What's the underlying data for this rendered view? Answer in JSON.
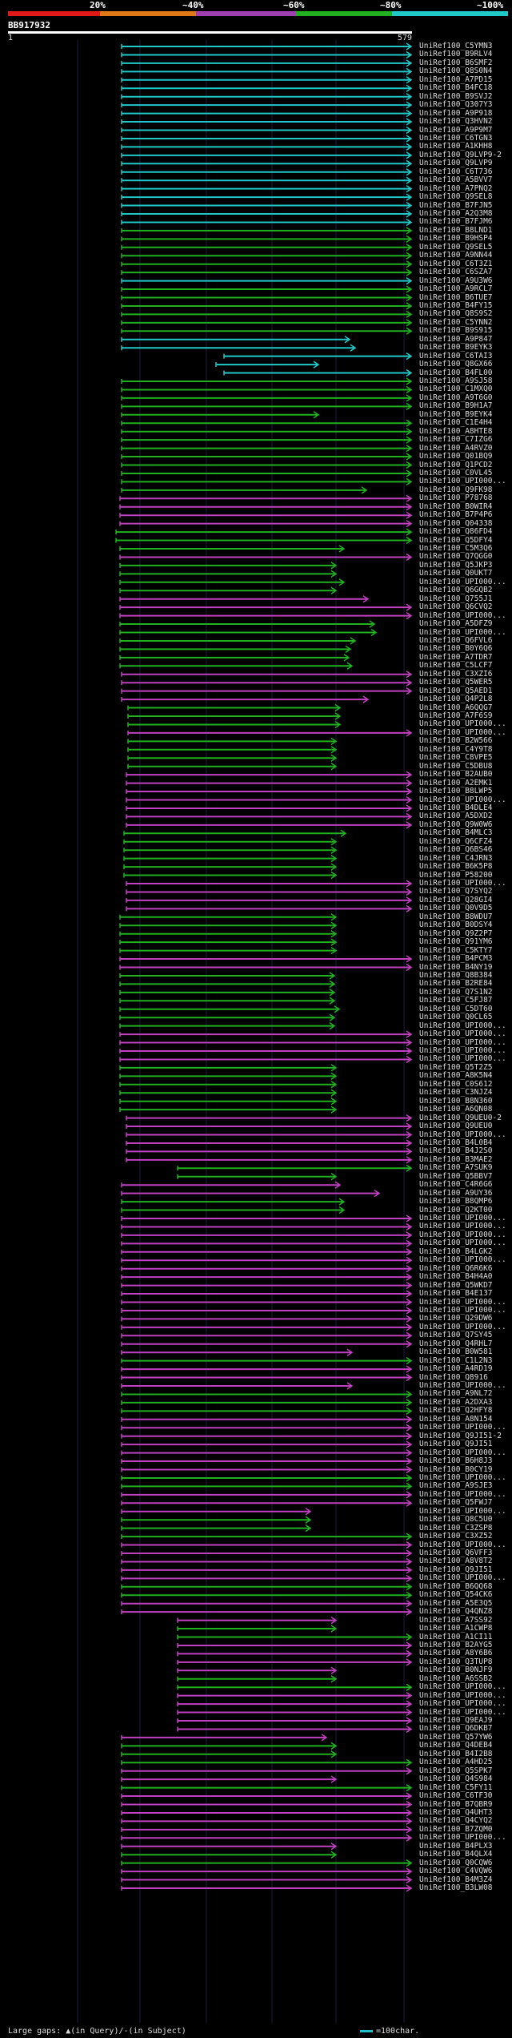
{
  "legend": {
    "stops": [
      "20%",
      "~40%",
      "~60%",
      "~80%",
      "~100%"
    ],
    "colors": [
      "#e01818",
      "#e07818",
      "#a040b0",
      "#20b020",
      "#20c8c8"
    ]
  },
  "query": {
    "id": "BB917932",
    "start": "1",
    "end": "579"
  },
  "footer": {
    "gaps": "Large gaps: ▲(in Query)/-(in Subject)",
    "scale": "=100char."
  },
  "hits": [
    {
      "id": "UniRef100_C5YMN3",
      "cat": "cyan"
    },
    {
      "id": "UniRef100_B9RLV4",
      "cat": "cyan"
    },
    {
      "id": "UniRef100_B6SMF2",
      "cat": "cyan"
    },
    {
      "id": "UniRef100_Q8S0N4",
      "cat": "cyan"
    },
    {
      "id": "UniRef100_A7PD15",
      "cat": "cyan"
    },
    {
      "id": "UniRef100_B4FC18",
      "cat": "cyan"
    },
    {
      "id": "UniRef100_B9SVJ2",
      "cat": "cyan"
    },
    {
      "id": "UniRef100_Q307Y3",
      "cat": "cyan"
    },
    {
      "id": "UniRef100_A9P918",
      "cat": "cyan"
    },
    {
      "id": "UniRef100_Q3HVN2",
      "cat": "cyan"
    },
    {
      "id": "UniRef100_A9P9M7",
      "cat": "cyan"
    },
    {
      "id": "UniRef100_C6TGN3",
      "cat": "cyan"
    },
    {
      "id": "UniRef100_A1KHH8",
      "cat": "cyan"
    },
    {
      "id": "UniRef100_Q9LVP9-2",
      "cat": "cyan"
    },
    {
      "id": "UniRef100_Q9LVP9",
      "cat": "cyan"
    },
    {
      "id": "UniRef100_C6T736",
      "cat": "cyan"
    },
    {
      "id": "UniRef100_A5BVV7",
      "cat": "cyan"
    },
    {
      "id": "UniRef100_A7PNQ2",
      "cat": "cyan"
    },
    {
      "id": "UniRef100_Q9SEL8",
      "cat": "cyan"
    },
    {
      "id": "UniRef100_B7FJN5",
      "cat": "cyan"
    },
    {
      "id": "UniRef100_A2Q3M8",
      "cat": "cyan"
    },
    {
      "id": "UniRef100_B7FJM6",
      "cat": "cyan"
    },
    {
      "id": "UniRef100_B8LND1",
      "cat": "green"
    },
    {
      "id": "UniRef100_B9HSP4",
      "cat": "green"
    },
    {
      "id": "UniRef100_Q9SEL5",
      "cat": "green"
    },
    {
      "id": "UniRef100_A9NN44",
      "cat": "green"
    },
    {
      "id": "UniRef100_C6T3Z1",
      "cat": "green"
    },
    {
      "id": "UniRef100_C6SZA7",
      "cat": "green"
    },
    {
      "id": "UniRef100_A9U3W6",
      "cat": "cyan"
    },
    {
      "id": "UniRef100_A9RCL7",
      "cat": "green"
    },
    {
      "id": "UniRef100_B6TUE7",
      "cat": "green"
    },
    {
      "id": "UniRef100_B4FY15",
      "cat": "green"
    },
    {
      "id": "UniRef100_Q8S9S2",
      "cat": "green"
    },
    {
      "id": "UniRef100_C5YNN2",
      "cat": "green"
    },
    {
      "id": "UniRef100_B9S915",
      "cat": "green"
    },
    {
      "id": "UniRef100_A9P847",
      "cat": "cyan"
    },
    {
      "id": "UniRef100_B9EYK3",
      "cat": "cyan"
    },
    {
      "id": "UniRef100_C6TAI3",
      "cat": "cyan"
    },
    {
      "id": "UniRef100_Q8GX66",
      "cat": "cyan"
    },
    {
      "id": "UniRef100_B4FL00",
      "cat": "cyan"
    },
    {
      "id": "UniRef100_A9SJ58",
      "cat": "green"
    },
    {
      "id": "UniRef100_C1MXQ0",
      "cat": "green"
    },
    {
      "id": "UniRef100_A9T6G0",
      "cat": "green"
    },
    {
      "id": "UniRef100_B9H1A7",
      "cat": "green"
    },
    {
      "id": "UniRef100_B9EYK4",
      "cat": "green"
    },
    {
      "id": "UniRef100_C1E4H4",
      "cat": "green"
    },
    {
      "id": "UniRef100_A8HTE8",
      "cat": "green"
    },
    {
      "id": "UniRef100_C7IZG6",
      "cat": "green"
    },
    {
      "id": "UniRef100_A4RVZ0",
      "cat": "green"
    },
    {
      "id": "UniRef100_Q01BQ9",
      "cat": "green"
    },
    {
      "id": "UniRef100_Q1PCD2",
      "cat": "green"
    },
    {
      "id": "UniRef100_C0VL45",
      "cat": "green"
    },
    {
      "id": "UniRef100_UPI000...",
      "cat": "green"
    },
    {
      "id": "UniRef100_Q9FK98",
      "cat": "green"
    },
    {
      "id": "UniRef100_P78768",
      "cat": "magenta"
    },
    {
      "id": "UniRef100_B0WIR4",
      "cat": "magenta"
    },
    {
      "id": "UniRef100_B7P4P6",
      "cat": "magenta"
    },
    {
      "id": "UniRef100_Q04338",
      "cat": "magenta"
    },
    {
      "id": "UniRef100_Q86FD4",
      "cat": "green"
    },
    {
      "id": "UniRef100_Q5DFY4",
      "cat": "green"
    },
    {
      "id": "UniRef100_C5M3Q6",
      "cat": "green"
    },
    {
      "id": "UniRef100_Q7QGG0",
      "cat": "magenta"
    },
    {
      "id": "UniRef100_Q5JKP3",
      "cat": "green"
    },
    {
      "id": "UniRef100_Q0UKT7",
      "cat": "green"
    },
    {
      "id": "UniRef100_UPI000...",
      "cat": "green"
    },
    {
      "id": "UniRef100_Q6GQB2",
      "cat": "green"
    },
    {
      "id": "UniRef100_Q755J1",
      "cat": "magenta"
    },
    {
      "id": "UniRef100_Q6CVQ2",
      "cat": "magenta"
    },
    {
      "id": "UniRef100_UPI000...",
      "cat": "magenta"
    },
    {
      "id": "UniRef100_A5DFZ9",
      "cat": "green"
    },
    {
      "id": "UniRef100_UPI000...",
      "cat": "green"
    },
    {
      "id": "UniRef100_Q6FVL6",
      "cat": "green"
    },
    {
      "id": "UniRef100_B0Y6Q6",
      "cat": "green"
    },
    {
      "id": "UniRef100_A7TDR7",
      "cat": "green"
    },
    {
      "id": "UniRef100_C5LCF7",
      "cat": "green"
    },
    {
      "id": "UniRef100_C3XZI6",
      "cat": "magenta"
    },
    {
      "id": "UniRef100_Q5WER5",
      "cat": "magenta"
    },
    {
      "id": "UniRef100_Q5AED1",
      "cat": "magenta"
    },
    {
      "id": "UniRef100_Q4P2L8",
      "cat": "magenta"
    },
    {
      "id": "UniRef100_A6QQG7",
      "cat": "green"
    },
    {
      "id": "UniRef100_A7F6S9",
      "cat": "green"
    },
    {
      "id": "UniRef100_UPI000...",
      "cat": "green"
    },
    {
      "id": "UniRef100_UPI000...",
      "cat": "magenta"
    },
    {
      "id": "UniRef100_B2W566",
      "cat": "green"
    },
    {
      "id": "UniRef100_C4Y9T8",
      "cat": "green"
    },
    {
      "id": "UniRef100_C8VPE5",
      "cat": "green"
    },
    {
      "id": "UniRef100_C5DBU8",
      "cat": "green"
    },
    {
      "id": "UniRef100_B2AUB0",
      "cat": "magenta"
    },
    {
      "id": "UniRef100_A2EMK1",
      "cat": "magenta"
    },
    {
      "id": "UniRef100_B8LWP5",
      "cat": "magenta"
    },
    {
      "id": "UniRef100_UPI000...",
      "cat": "magenta"
    },
    {
      "id": "UniRef100_B4DLE4",
      "cat": "magenta"
    },
    {
      "id": "UniRef100_A5DXD2",
      "cat": "magenta"
    },
    {
      "id": "UniRef100_Q9W0W6",
      "cat": "magenta"
    },
    {
      "id": "UniRef100_B4MLC3",
      "cat": "green"
    },
    {
      "id": "UniRef100_Q6CFZ4",
      "cat": "green"
    },
    {
      "id": "UniRef100_Q6BS46",
      "cat": "green"
    },
    {
      "id": "UniRef100_C4JRN3",
      "cat": "green"
    },
    {
      "id": "UniRef100_B6K5P8",
      "cat": "green"
    },
    {
      "id": "UniRef100_P58200",
      "cat": "green"
    },
    {
      "id": "UniRef100_UPI000...",
      "cat": "magenta"
    },
    {
      "id": "UniRef100_Q7SYQ2",
      "cat": "magenta"
    },
    {
      "id": "UniRef100_Q28GI4",
      "cat": "magenta"
    },
    {
      "id": "UniRef100_Q0V9D5",
      "cat": "magenta"
    },
    {
      "id": "UniRef100_B8WDU7",
      "cat": "green"
    },
    {
      "id": "UniRef100_B0DSY4",
      "cat": "green"
    },
    {
      "id": "UniRef100_Q9Z2P7",
      "cat": "green"
    },
    {
      "id": "UniRef100_Q91YM6",
      "cat": "green"
    },
    {
      "id": "UniRef100_C5KTY7",
      "cat": "green"
    },
    {
      "id": "UniRef100_B4PCM3",
      "cat": "magenta"
    },
    {
      "id": "UniRef100_B4NY19",
      "cat": "magenta"
    },
    {
      "id": "UniRef100_Q8B384",
      "cat": "green"
    },
    {
      "id": "UniRef100_B2RE84",
      "cat": "green"
    },
    {
      "id": "UniRef100_Q7S1N2",
      "cat": "green"
    },
    {
      "id": "UniRef100_C5FJ87",
      "cat": "green"
    },
    {
      "id": "UniRef100_C5DT60",
      "cat": "green"
    },
    {
      "id": "UniRef100_Q0CL65",
      "cat": "green"
    },
    {
      "id": "UniRef100_UPI000...",
      "cat": "green"
    },
    {
      "id": "UniRef100_UPI000...",
      "cat": "magenta"
    },
    {
      "id": "UniRef100_UPI000...",
      "cat": "magenta"
    },
    {
      "id": "UniRef100_UPI000...",
      "cat": "magenta"
    },
    {
      "id": "UniRef100_UPI000...",
      "cat": "magenta"
    },
    {
      "id": "UniRef100_Q5T2Z5",
      "cat": "green"
    },
    {
      "id": "UniRef100_A8K5N4",
      "cat": "green"
    },
    {
      "id": "UniRef100_C0S612",
      "cat": "green"
    },
    {
      "id": "UniRef100_C3NJZ4",
      "cat": "green"
    },
    {
      "id": "UniRef100_B8N360",
      "cat": "green"
    },
    {
      "id": "UniRef100_A6QN08",
      "cat": "green"
    },
    {
      "id": "UniRef100_Q9UEU0-2",
      "cat": "magenta"
    },
    {
      "id": "UniRef100_Q9UEU0",
      "cat": "magenta"
    },
    {
      "id": "UniRef100_UPI000...",
      "cat": "magenta"
    },
    {
      "id": "UniRef100_B4L0B4",
      "cat": "magenta"
    },
    {
      "id": "UniRef100_B4J2S0",
      "cat": "magenta"
    },
    {
      "id": "UniRef100_B3MAE2",
      "cat": "magenta"
    },
    {
      "id": "UniRef100_A7SUK9",
      "cat": "green"
    },
    {
      "id": "UniRef100_Q5BBV7",
      "cat": "green"
    },
    {
      "id": "UniRef100_C4R6G6",
      "cat": "magenta"
    },
    {
      "id": "UniRef100_A9UY36",
      "cat": "magenta"
    },
    {
      "id": "UniRef100_B8QMP6",
      "cat": "green"
    },
    {
      "id": "UniRef100_Q2KT00",
      "cat": "green"
    },
    {
      "id": "UniRef100_UPI000...",
      "cat": "magenta"
    },
    {
      "id": "UniRef100_UPI000...",
      "cat": "magenta"
    },
    {
      "id": "UniRef100_UPI000...",
      "cat": "magenta"
    },
    {
      "id": "UniRef100_UPI000...",
      "cat": "magenta"
    },
    {
      "id": "UniRef100_B4LGK2",
      "cat": "magenta"
    },
    {
      "id": "UniRef100_UPI000...",
      "cat": "magenta"
    },
    {
      "id": "UniRef100_Q6R6K6",
      "cat": "magenta"
    },
    {
      "id": "UniRef100_B4H4A0",
      "cat": "magenta"
    },
    {
      "id": "UniRef100_Q5WKD7",
      "cat": "magenta"
    },
    {
      "id": "UniRef100_B4E137",
      "cat": "magenta"
    },
    {
      "id": "UniRef100_UPI000...",
      "cat": "magenta"
    },
    {
      "id": "UniRef100_UPI000...",
      "cat": "magenta"
    },
    {
      "id": "UniRef100_Q29DW6",
      "cat": "magenta"
    },
    {
      "id": "UniRef100_UPI000...",
      "cat": "magenta"
    },
    {
      "id": "UniRef100_Q7SY45",
      "cat": "magenta"
    },
    {
      "id": "UniRef100_Q4RHL7",
      "cat": "magenta"
    },
    {
      "id": "UniRef100_B0W581",
      "cat": "magenta"
    },
    {
      "id": "UniRef100_C1L2N3",
      "cat": "green"
    },
    {
      "id": "UniRef100_A4RD19",
      "cat": "magenta"
    },
    {
      "id": "UniRef100_Q8916",
      "cat": "magenta"
    },
    {
      "id": "UniRef100_UPI000...",
      "cat": "magenta"
    },
    {
      "id": "UniRef100_A9NL72",
      "cat": "green"
    },
    {
      "id": "UniRef100_A2DXA3",
      "cat": "green"
    },
    {
      "id": "UniRef100_Q2HFY8",
      "cat": "green"
    },
    {
      "id": "UniRef100_A8N154",
      "cat": "magenta"
    },
    {
      "id": "UniRef100_UPI000...",
      "cat": "magenta"
    },
    {
      "id": "UniRef100_Q9JI51-2",
      "cat": "magenta"
    },
    {
      "id": "UniRef100_Q9JI51",
      "cat": "magenta"
    },
    {
      "id": "UniRef100_UPI000...",
      "cat": "magenta"
    },
    {
      "id": "UniRef100_B6H8J3",
      "cat": "magenta"
    },
    {
      "id": "UniRef100_B0CY19",
      "cat": "magenta"
    },
    {
      "id": "UniRef100_UPI000...",
      "cat": "green"
    },
    {
      "id": "UniRef100_A9SJE3",
      "cat": "green"
    },
    {
      "id": "UniRef100_UPI000...",
      "cat": "magenta"
    },
    {
      "id": "UniRef100_Q5FWJ7",
      "cat": "magenta"
    },
    {
      "id": "UniRef100_UPI000...",
      "cat": "magenta"
    },
    {
      "id": "UniRef100_Q8C5U0",
      "cat": "green"
    },
    {
      "id": "UniRef100_C3ZSP8",
      "cat": "green"
    },
    {
      "id": "UniRef100_C3XZ52",
      "cat": "green"
    },
    {
      "id": "UniRef100_UPI000...",
      "cat": "magenta"
    },
    {
      "id": "UniRef100_Q6VFF3",
      "cat": "magenta"
    },
    {
      "id": "UniRef100_A8V8T2",
      "cat": "magenta"
    },
    {
      "id": "UniRef100_Q9JI51",
      "cat": "magenta"
    },
    {
      "id": "UniRef100_UPI000...",
      "cat": "magenta"
    },
    {
      "id": "UniRef100_B6QQ68",
      "cat": "green"
    },
    {
      "id": "UniRef100_Q54CK6",
      "cat": "green"
    },
    {
      "id": "UniRef100_A5E3Q5",
      "cat": "magenta"
    },
    {
      "id": "UniRef100_Q4QNZ8",
      "cat": "magenta"
    },
    {
      "id": "UniRef100_A7SS92",
      "cat": "magenta"
    },
    {
      "id": "UniRef100_A1CWP8",
      "cat": "green"
    },
    {
      "id": "UniRef100_A1CI11",
      "cat": "green"
    },
    {
      "id": "UniRef100_B2AYG5",
      "cat": "magenta"
    },
    {
      "id": "UniRef100_A8Y6B6",
      "cat": "magenta"
    },
    {
      "id": "UniRef100_Q3TUP8",
      "cat": "magenta"
    },
    {
      "id": "UniRef100_B0NJF9",
      "cat": "magenta"
    },
    {
      "id": "UniRef100_A6SSB2",
      "cat": "green"
    },
    {
      "id": "UniRef100_UPI000...",
      "cat": "green"
    },
    {
      "id": "UniRef100_UPI000...",
      "cat": "magenta"
    },
    {
      "id": "UniRef100_UPI000...",
      "cat": "magenta"
    },
    {
      "id": "UniRef100_UPI000...",
      "cat": "magenta"
    },
    {
      "id": "UniRef100_Q9EAJ9",
      "cat": "magenta"
    },
    {
      "id": "UniRef100_Q6DKB7",
      "cat": "magenta"
    },
    {
      "id": "UniRef100_Q57YW6",
      "cat": "magenta"
    },
    {
      "id": "UniRef100_Q4DEB4",
      "cat": "green"
    },
    {
      "id": "UniRef100_B4I2B8",
      "cat": "green"
    },
    {
      "id": "UniRef100_A4HD25",
      "cat": "green"
    },
    {
      "id": "UniRef100_Q5SPK7",
      "cat": "magenta"
    },
    {
      "id": "UniRef100_Q4S984",
      "cat": "magenta"
    },
    {
      "id": "UniRef100_C5FY11",
      "cat": "green"
    },
    {
      "id": "UniRef100_C6TF30",
      "cat": "magenta"
    },
    {
      "id": "UniRef100_B7QBR9",
      "cat": "magenta"
    },
    {
      "id": "UniRef100_Q4UHT3",
      "cat": "magenta"
    },
    {
      "id": "UniRef100_Q4CYQ2",
      "cat": "magenta"
    },
    {
      "id": "UniRef100_B7ZQM0",
      "cat": "magenta"
    },
    {
      "id": "UniRef100_UPI000...",
      "cat": "magenta"
    },
    {
      "id": "UniRef100_B4PLX3",
      "cat": "magenta"
    },
    {
      "id": "UniRef100_B4QLX4",
      "cat": "green"
    },
    {
      "id": "UniRef100_Q0CQW6",
      "cat": "green"
    },
    {
      "id": "UniRef100_C4VQW6",
      "cat": "magenta"
    },
    {
      "id": "UniRef100_B4M3Z4",
      "cat": "magenta"
    },
    {
      "id": "UniRef100_B3LW08",
      "cat": "magenta"
    }
  ]
}
